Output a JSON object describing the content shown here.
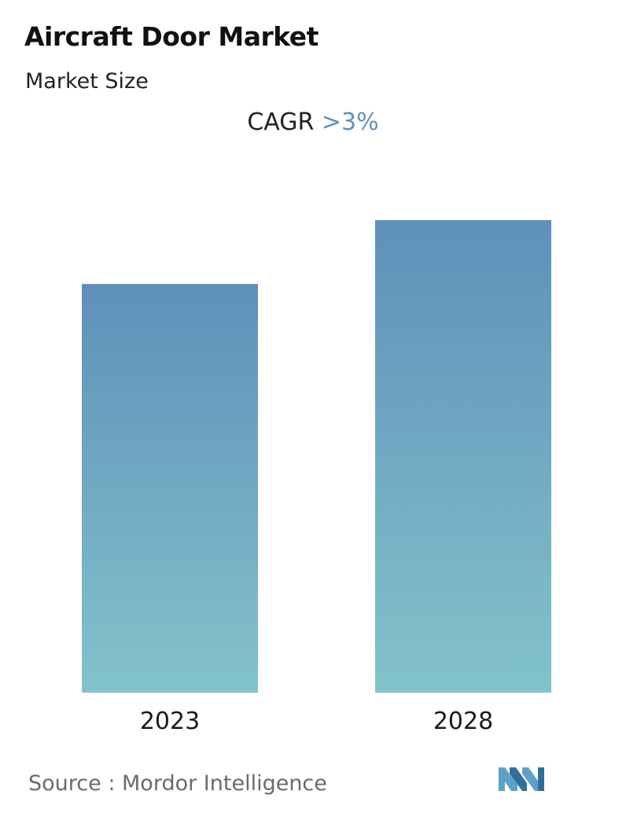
{
  "header": {
    "title": "Aircraft Door Market",
    "subtitle": "Market Size",
    "cagr_label": "CAGR",
    "cagr_value": ">3%"
  },
  "chart_data": {
    "type": "bar",
    "categories": [
      "2023",
      "2028"
    ],
    "values": [
      0.865,
      1.0
    ],
    "value_note": "relative bar heights (no axis values printed)",
    "ylim": [
      0,
      1
    ],
    "grid": false,
    "colors": {
      "bar_top": "#5f90ba",
      "bar_bottom": "#82c3cb",
      "cagr_accent": "#5f93bb"
    }
  },
  "footer": {
    "source_label": "Source :",
    "source_name": "Mordor Intelligence",
    "logo": "mordor-intelligence-logo"
  }
}
